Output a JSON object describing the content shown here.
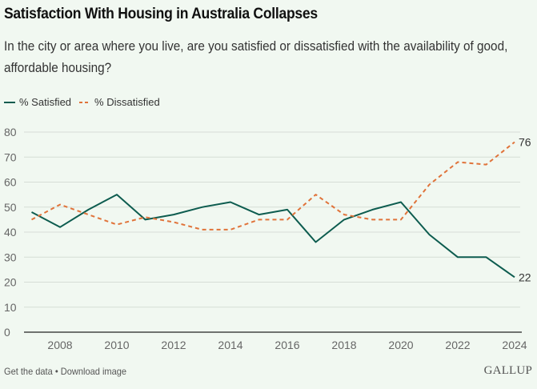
{
  "header": {
    "title": "Satisfaction With Housing in Australia Collapses",
    "subtitle": "In the city or area where you live, are you satisfied or dissatisfied with the availability of good, affordable housing?"
  },
  "legend": [
    {
      "label": "% Satisfied",
      "style": "solid",
      "color": "#0d5c4f"
    },
    {
      "label": "% Dissatisfied",
      "style": "dashed",
      "color": "#e0733a"
    }
  ],
  "footer": {
    "get_data": "Get the data",
    "separator": "•",
    "download": "Download image",
    "logo": "GALLUP"
  },
  "chart_data": {
    "type": "line",
    "title": "Satisfaction With Housing in Australia Collapses",
    "subtitle": "In the city or area where you live, are you satisfied or dissatisfied with the availability of good, affordable housing?",
    "xlabel": "",
    "ylabel": "",
    "x": [
      2007,
      2008,
      2009,
      2010,
      2011,
      2012,
      2013,
      2014,
      2015,
      2016,
      2017,
      2018,
      2019,
      2020,
      2021,
      2022,
      2023,
      2024
    ],
    "xticks": [
      2008,
      2010,
      2012,
      2014,
      2016,
      2018,
      2020,
      2022,
      2024
    ],
    "xlim": [
      2007,
      2024
    ],
    "ylim": [
      0,
      80
    ],
    "yticks": [
      0,
      10,
      20,
      30,
      40,
      50,
      60,
      70,
      80
    ],
    "grid": true,
    "legend_position": "top-left",
    "series": [
      {
        "name": "% Satisfied",
        "color": "#0d5c4f",
        "dash": false,
        "values": [
          48,
          42,
          49,
          55,
          45,
          47,
          50,
          52,
          47,
          49,
          36,
          45,
          49,
          52,
          39,
          30,
          30,
          22
        ],
        "end_label": "22"
      },
      {
        "name": "% Dissatisfied",
        "color": "#e0733a",
        "dash": true,
        "values": [
          45,
          51,
          47,
          43,
          46,
          44,
          41,
          41,
          45,
          45,
          55,
          47,
          45,
          45,
          59,
          68,
          67,
          76
        ],
        "end_label": "76"
      }
    ]
  }
}
